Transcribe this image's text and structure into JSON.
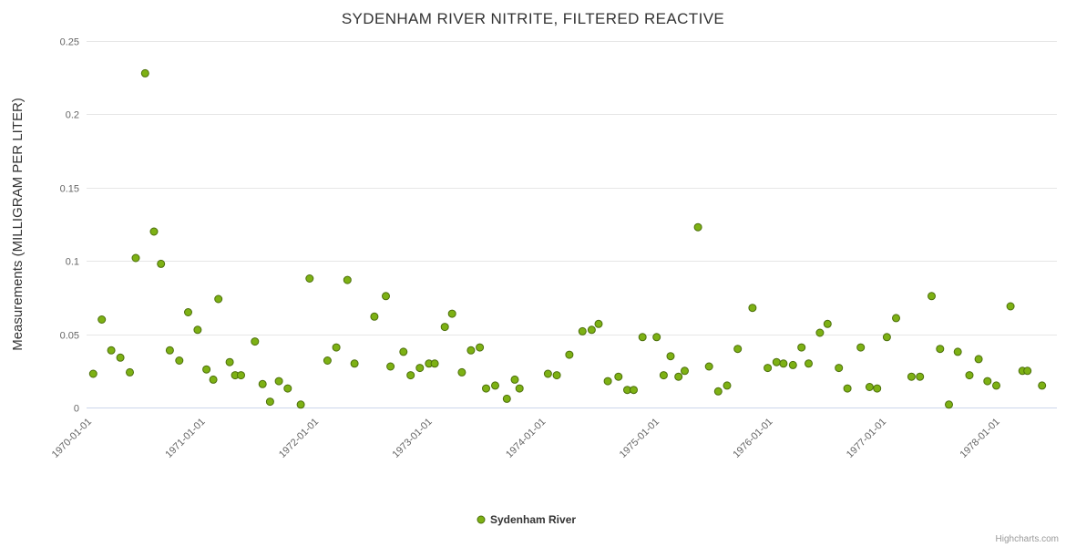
{
  "chart_data": {
    "type": "scatter",
    "title": "SYDENHAM RIVER NITRITE, FILTERED REACTIVE",
    "xlabel": "",
    "ylabel": "Measurements (MILLIGRAM PER LITER)",
    "ylim": [
      0,
      0.25
    ],
    "yticks": [
      0,
      0.05,
      0.1,
      0.15,
      0.2,
      0.25
    ],
    "ytick_labels": [
      "0",
      "0.05",
      "0.1",
      "0.15",
      "0.2",
      "0.25"
    ],
    "xtick_labels": [
      "1970-01-01",
      "1971-01-01",
      "1972-01-01",
      "1973-01-01",
      "1974-01-01",
      "1975-01-01",
      "1976-01-01",
      "1977-01-01",
      "1978-01-01"
    ],
    "x_range": [
      "1969-12-14",
      "1978-07-01"
    ],
    "grid": true,
    "legend_position": "bottom-center",
    "series": [
      {
        "name": "Sydenham River",
        "color": "#7db114",
        "marker_stroke": "#4c6f0b",
        "marker_radius": 4,
        "points": [
          [
            "1970-01-05",
            0.023
          ],
          [
            "1970-02-02",
            0.06
          ],
          [
            "1970-03-02",
            0.039
          ],
          [
            "1970-04-01",
            0.034
          ],
          [
            "1970-05-01",
            0.024
          ],
          [
            "1970-05-20",
            0.102
          ],
          [
            "1970-06-20",
            0.228
          ],
          [
            "1970-07-18",
            0.12
          ],
          [
            "1970-08-10",
            0.098
          ],
          [
            "1970-09-08",
            0.039
          ],
          [
            "1970-10-08",
            0.032
          ],
          [
            "1970-11-06",
            0.065
          ],
          [
            "1970-12-06",
            0.053
          ],
          [
            "1971-01-04",
            0.026
          ],
          [
            "1971-01-26",
            0.019
          ],
          [
            "1971-02-12",
            0.074
          ],
          [
            "1971-03-18",
            0.031
          ],
          [
            "1971-04-05",
            0.022
          ],
          [
            "1971-04-24",
            0.022
          ],
          [
            "1971-06-08",
            0.045
          ],
          [
            "1971-07-02",
            0.016
          ],
          [
            "1971-07-26",
            0.004
          ],
          [
            "1971-08-24",
            0.018
          ],
          [
            "1971-09-22",
            0.013
          ],
          [
            "1971-11-03",
            0.002
          ],
          [
            "1971-12-01",
            0.088
          ],
          [
            "1972-01-28",
            0.032
          ],
          [
            "1972-02-26",
            0.041
          ],
          [
            "1972-04-01",
            0.087
          ],
          [
            "1972-04-24",
            0.03
          ],
          [
            "1972-06-27",
            0.062
          ],
          [
            "1972-08-03",
            0.076
          ],
          [
            "1972-08-18",
            0.028
          ],
          [
            "1972-09-29",
            0.038
          ],
          [
            "1972-10-22",
            0.022
          ],
          [
            "1972-11-21",
            0.027
          ],
          [
            "1972-12-20",
            0.03
          ],
          [
            "1973-01-08",
            0.03
          ],
          [
            "1973-02-10",
            0.055
          ],
          [
            "1973-03-03",
            0.064
          ],
          [
            "1973-04-04",
            0.024
          ],
          [
            "1973-05-03",
            0.039
          ],
          [
            "1973-06-01",
            0.041
          ],
          [
            "1973-06-21",
            0.013
          ],
          [
            "1973-07-20",
            0.015
          ],
          [
            "1973-08-27",
            0.006
          ],
          [
            "1973-09-22",
            0.019
          ],
          [
            "1973-10-07",
            0.013
          ],
          [
            "1974-01-07",
            0.023
          ],
          [
            "1974-02-05",
            0.022
          ],
          [
            "1974-03-15",
            0.036
          ],
          [
            "1974-04-27",
            0.052
          ],
          [
            "1974-05-26",
            0.053
          ],
          [
            "1974-06-18",
            0.057
          ],
          [
            "1974-07-17",
            0.018
          ],
          [
            "1974-08-21",
            0.021
          ],
          [
            "1974-09-19",
            0.012
          ],
          [
            "1974-10-09",
            0.012
          ],
          [
            "1974-11-07",
            0.048
          ],
          [
            "1974-12-22",
            0.048
          ],
          [
            "1975-01-14",
            0.022
          ],
          [
            "1975-02-06",
            0.035
          ],
          [
            "1975-03-01",
            0.021
          ],
          [
            "1975-03-21",
            0.025
          ],
          [
            "1975-05-03",
            0.123
          ],
          [
            "1975-06-08",
            0.028
          ],
          [
            "1975-07-07",
            0.011
          ],
          [
            "1975-08-05",
            0.015
          ],
          [
            "1975-09-09",
            0.04
          ],
          [
            "1975-10-26",
            0.068
          ],
          [
            "1975-12-14",
            0.027
          ],
          [
            "1976-01-12",
            0.031
          ],
          [
            "1976-02-04",
            0.03
          ],
          [
            "1976-03-04",
            0.029
          ],
          [
            "1976-04-01",
            0.041
          ],
          [
            "1976-04-24",
            0.03
          ],
          [
            "1976-05-30",
            0.051
          ],
          [
            "1976-06-24",
            0.057
          ],
          [
            "1976-07-30",
            0.027
          ],
          [
            "1976-08-27",
            0.013
          ],
          [
            "1976-10-09",
            0.041
          ],
          [
            "1976-11-07",
            0.014
          ],
          [
            "1976-12-01",
            0.013
          ],
          [
            "1977-01-02",
            0.048
          ],
          [
            "1977-02-01",
            0.061
          ],
          [
            "1977-03-20",
            0.021
          ],
          [
            "1977-04-17",
            0.021
          ],
          [
            "1977-05-24",
            0.076
          ],
          [
            "1977-06-21",
            0.04
          ],
          [
            "1977-07-19",
            0.002
          ],
          [
            "1977-08-17",
            0.038
          ],
          [
            "1977-09-24",
            0.022
          ],
          [
            "1977-10-23",
            0.033
          ],
          [
            "1977-11-21",
            0.018
          ],
          [
            "1977-12-19",
            0.015
          ],
          [
            "1978-02-04",
            0.069
          ],
          [
            "1978-03-12",
            0.025
          ],
          [
            "1978-03-28",
            0.025
          ],
          [
            "1978-05-14",
            0.015
          ]
        ]
      }
    ]
  },
  "credits": {
    "label": "Highcharts.com"
  }
}
